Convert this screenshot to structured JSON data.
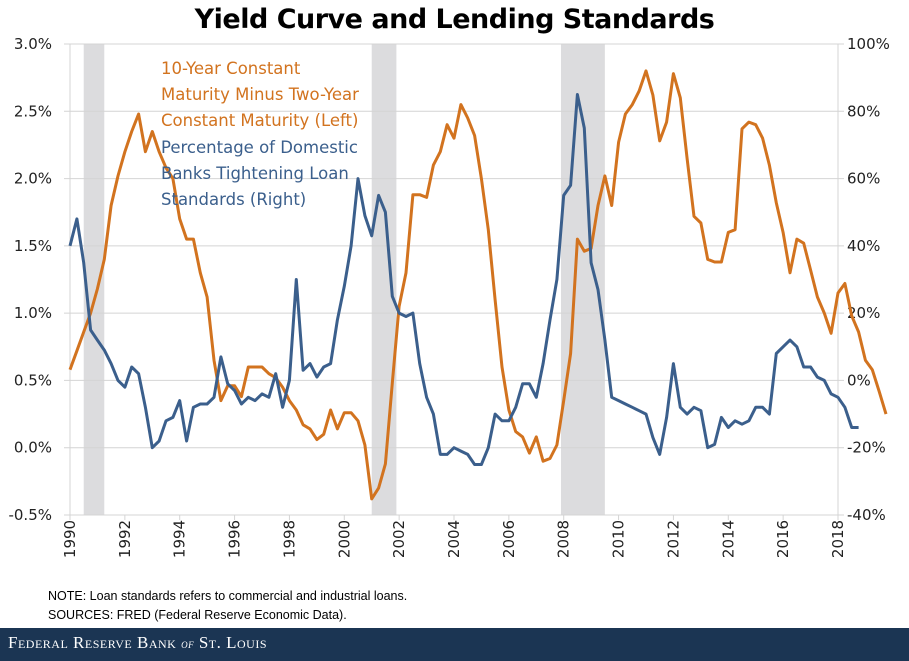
{
  "chart_data": {
    "type": "line",
    "title": "Yield Curve and Lending Standards",
    "xlabel": "",
    "ylabel_left": "",
    "ylabel_right": "",
    "x_range": [
      1990,
      2018
    ],
    "x_ticks": [
      "1990",
      "1992",
      "1994",
      "1996",
      "1998",
      "2000",
      "2002",
      "2004",
      "2006",
      "2008",
      "2010",
      "2012",
      "2014",
      "2016",
      "2018"
    ],
    "y_left": {
      "range": [
        -0.5,
        3.0
      ],
      "ticks": [
        "3.0%",
        "2.5%",
        "2.0%",
        "1.5%",
        "1.0%",
        "0.5%",
        "0.0%",
        "-0.5%"
      ],
      "tick_values": [
        3.0,
        2.5,
        2.0,
        1.5,
        1.0,
        0.5,
        0.0,
        -0.5
      ]
    },
    "y_right": {
      "range": [
        -40,
        100
      ],
      "ticks": [
        "100%",
        "80%",
        "60%",
        "40%",
        "20%",
        "0%",
        "-20%",
        "-40%"
      ],
      "tick_values": [
        100,
        80,
        60,
        40,
        20,
        0,
        -20,
        -40
      ]
    },
    "grid": true,
    "recessions": [
      [
        1990.5,
        1991.25
      ],
      [
        2001.0,
        2001.9
      ],
      [
        2007.9,
        2009.5
      ]
    ],
    "legend_placement": "top-left",
    "series": [
      {
        "name": "10-Year Constant Maturity Minus Two-Year Constant Maturity (Left)",
        "axis": "left",
        "color": "#d2731f",
        "x_start": 1990.0,
        "x_step": 0.25,
        "values": [
          0.58,
          0.72,
          0.86,
          1.0,
          1.18,
          1.4,
          1.8,
          2.02,
          2.2,
          2.35,
          2.48,
          2.2,
          2.35,
          2.2,
          2.08,
          2.0,
          1.7,
          1.55,
          1.55,
          1.3,
          1.12,
          0.65,
          0.35,
          0.46,
          0.46,
          0.38,
          0.6,
          0.6,
          0.6,
          0.55,
          0.52,
          0.45,
          0.35,
          0.28,
          0.17,
          0.14,
          0.06,
          0.1,
          0.28,
          0.14,
          0.26,
          0.26,
          0.2,
          0.02,
          -0.38,
          -0.3,
          -0.12,
          0.48,
          1.05,
          1.3,
          1.88,
          1.88,
          1.86,
          2.1,
          2.2,
          2.4,
          2.3,
          2.55,
          2.45,
          2.32,
          2.0,
          1.62,
          1.1,
          0.6,
          0.28,
          0.12,
          0.08,
          -0.04,
          0.08,
          -0.1,
          -0.08,
          0.02,
          0.35,
          0.7,
          1.55,
          1.46,
          1.48,
          1.8,
          2.02,
          1.8,
          2.27,
          2.48,
          2.55,
          2.65,
          2.8,
          2.62,
          2.28,
          2.42,
          2.78,
          2.6,
          2.15,
          1.72,
          1.67,
          1.4,
          1.38,
          1.38,
          1.6,
          1.62,
          2.37,
          2.42,
          2.4,
          2.3,
          2.1,
          1.82,
          1.6,
          1.3,
          1.55,
          1.52,
          1.32,
          1.12,
          1.0,
          0.85,
          1.15,
          1.22,
          0.98,
          0.86,
          0.65,
          0.58,
          0.42,
          0.25
        ]
      },
      {
        "name": "Percentage of Domestic Banks Tightening Loan Standards (Right)",
        "axis": "right",
        "color": "#3b5f8c",
        "x_start": 1990.0,
        "x_step": 0.25,
        "values": [
          40,
          48,
          35,
          15,
          12,
          9,
          5,
          0,
          -2,
          4,
          2,
          -8,
          -20,
          -18,
          -12,
          -11,
          -6,
          -18,
          -8,
          -7,
          -7,
          -5,
          7,
          -1,
          -3,
          -7,
          -5,
          -6,
          -4,
          -5,
          2,
          -8,
          0,
          30,
          3,
          5,
          1,
          4,
          5,
          18,
          28,
          40,
          60,
          49,
          43,
          55,
          50,
          25,
          20,
          19,
          20,
          5,
          -5,
          -10,
          -22,
          -22,
          -20,
          -21,
          -22,
          -25,
          -25,
          -20,
          -10,
          -12,
          -12,
          -8,
          -1,
          -1,
          -5,
          5,
          18,
          30,
          55,
          58,
          85,
          75,
          35,
          27,
          12,
          -5,
          -6,
          -7,
          -8,
          -9,
          -10,
          -17,
          -22,
          -11,
          5,
          -8,
          -10,
          -8,
          -9,
          -20,
          -19,
          -11,
          -14,
          -12,
          -13,
          -12,
          -8,
          -8,
          -10,
          8,
          10,
          12,
          10,
          4,
          4,
          1,
          0,
          -4,
          -5,
          -8,
          -14,
          -14
        ]
      }
    ]
  },
  "notes": {
    "note": "NOTE: Loan standards refers to commercial and industrial loans.",
    "sources": "SOURCES: FRED (Federal Reserve Economic Data)."
  },
  "legend": {
    "series1_lines": [
      "10-Year Constant",
      "Maturity Minus Two-Year",
      "Constant Maturity (Left)"
    ],
    "series2_lines": [
      "Percentage of Domestic",
      "Banks Tightening Loan",
      "Standards (Right)"
    ]
  },
  "footer": {
    "pre": "Federal Reserve Bank ",
    "of": "of",
    "post": " St. Louis"
  }
}
